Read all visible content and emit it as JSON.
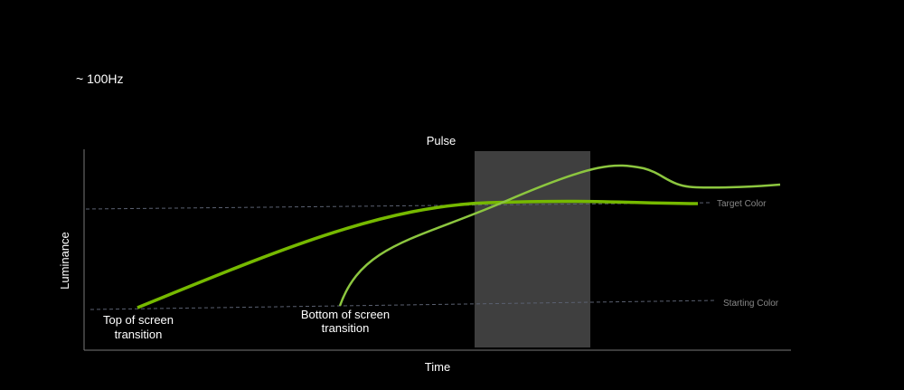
{
  "header": {
    "title": "~ 100Hz"
  },
  "diagram": {
    "pulse_label": "Pulse",
    "x_axis_label": "Time",
    "y_axis_label": "Luminance",
    "target_label": "Target Color",
    "starting_label": "Starting Color",
    "top_transition_label": [
      "Top of screen",
      "transition"
    ],
    "bottom_transition_label": [
      "Bottom of screen",
      "transition"
    ]
  }
}
